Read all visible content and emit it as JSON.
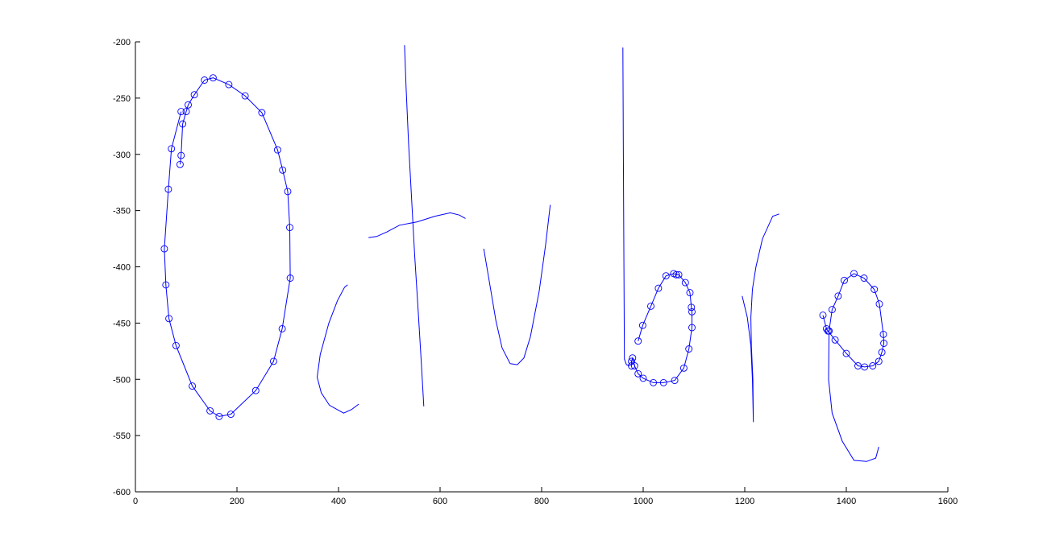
{
  "chart_data": {
    "type": "line",
    "title": "",
    "xlabel": "",
    "ylabel": "",
    "xlim": [
      0,
      1600
    ],
    "ylim": [
      -600,
      -200
    ],
    "x_ticks": [
      0,
      200,
      400,
      600,
      800,
      1000,
      1200,
      1400,
      1600
    ],
    "y_ticks": [
      -200,
      -250,
      -300,
      -350,
      -400,
      -450,
      -500,
      -550,
      -600
    ],
    "x_tick_labels": [
      "0",
      "200",
      "400",
      "600",
      "800",
      "1000",
      "1200",
      "1400",
      "1600"
    ],
    "y_tick_labels": [
      "-200",
      "-250",
      "-300",
      "-350",
      "-400",
      "-450",
      "-500",
      "-550",
      "-600"
    ],
    "grid": false,
    "line_color": "#0000ff",
    "axes_color": "#000000",
    "series": [
      {
        "markers": true,
        "points": [
          [
            88,
            -309
          ],
          [
            90,
            -301
          ],
          [
            93,
            -273
          ],
          [
            100,
            -262
          ],
          [
            104,
            -256
          ],
          [
            116,
            -247
          ],
          [
            136,
            -234
          ],
          [
            153,
            -232
          ],
          [
            184,
            -238
          ],
          [
            216,
            -248
          ],
          [
            249,
            -263
          ],
          [
            280,
            -296
          ],
          [
            290,
            -314
          ],
          [
            300,
            -333
          ],
          [
            304,
            -365
          ],
          [
            305,
            -410
          ],
          [
            289,
            -455
          ],
          [
            272,
            -484
          ],
          [
            237,
            -510
          ],
          [
            188,
            -531
          ],
          [
            165,
            -533
          ],
          [
            147,
            -528
          ],
          [
            112,
            -506
          ],
          [
            80,
            -470
          ],
          [
            66,
            -446
          ],
          [
            60,
            -416
          ],
          [
            57,
            -384
          ],
          [
            65,
            -331
          ],
          [
            71,
            -295
          ],
          [
            90,
            -262
          ]
        ]
      },
      {
        "markers": false,
        "points": [
          [
            418,
            -416
          ],
          [
            412,
            -418
          ],
          [
            398,
            -430
          ],
          [
            381,
            -450
          ],
          [
            364,
            -478
          ],
          [
            358,
            -498
          ],
          [
            366,
            -512
          ],
          [
            382,
            -523
          ],
          [
            410,
            -530
          ],
          [
            425,
            -527
          ],
          [
            440,
            -522
          ]
        ]
      },
      {
        "markers": false,
        "points": [
          [
            530,
            -203
          ],
          [
            533,
            -240
          ],
          [
            538,
            -290
          ],
          [
            544,
            -340
          ],
          [
            550,
            -390
          ],
          [
            557,
            -440
          ],
          [
            563,
            -485
          ],
          [
            568,
            -524
          ]
        ]
      },
      {
        "markers": false,
        "points": [
          [
            459,
            -374
          ],
          [
            475,
            -373
          ],
          [
            495,
            -369
          ],
          [
            520,
            -363
          ],
          [
            555,
            -360
          ],
          [
            590,
            -355
          ],
          [
            620,
            -352
          ],
          [
            638,
            -354
          ],
          [
            650,
            -357
          ]
        ]
      },
      {
        "markers": false,
        "points": [
          [
            686,
            -384
          ],
          [
            695,
            -408
          ],
          [
            710,
            -448
          ],
          [
            722,
            -472
          ],
          [
            738,
            -486
          ],
          [
            752,
            -487
          ],
          [
            765,
            -481
          ],
          [
            778,
            -462
          ],
          [
            795,
            -422
          ],
          [
            808,
            -380
          ],
          [
            817,
            -345
          ]
        ]
      },
      {
        "markers": false,
        "points": [
          [
            960,
            -205
          ],
          [
            961,
            -300
          ],
          [
            962,
            -400
          ],
          [
            963,
            -482
          ],
          [
            967,
            -487
          ],
          [
            975,
            -488
          ]
        ]
      },
      {
        "markers": true,
        "points": [
          [
            977,
            -488
          ],
          [
            977,
            -484
          ],
          [
            979,
            -481
          ],
          [
            983,
            -488
          ],
          [
            990,
            -495
          ],
          [
            1000,
            -499
          ],
          [
            1020,
            -503
          ],
          [
            1040,
            -503
          ],
          [
            1062,
            -501
          ],
          [
            1080,
            -490
          ],
          [
            1090,
            -473
          ],
          [
            1096,
            -454
          ],
          [
            1096,
            -440
          ],
          [
            1095,
            -436
          ],
          [
            1092,
            -423
          ],
          [
            1083,
            -414
          ],
          [
            1070,
            -407
          ],
          [
            1065,
            -407
          ],
          [
            1060,
            -406
          ],
          [
            1045,
            -408
          ],
          [
            1030,
            -419
          ],
          [
            1015,
            -435
          ],
          [
            999,
            -452
          ],
          [
            990,
            -466
          ]
        ]
      },
      {
        "markers": false,
        "points": [
          [
            1195,
            -426
          ],
          [
            1205,
            -445
          ],
          [
            1212,
            -470
          ],
          [
            1215,
            -500
          ],
          [
            1217,
            -538
          ],
          [
            1216,
            -500
          ],
          [
            1213,
            -470
          ],
          [
            1212,
            -445
          ],
          [
            1215,
            -420
          ],
          [
            1222,
            -400
          ],
          [
            1235,
            -375
          ],
          [
            1255,
            -355
          ],
          [
            1268,
            -353
          ]
        ]
      },
      {
        "markers": true,
        "points": [
          [
            1354,
            -443
          ],
          [
            1361,
            -455
          ],
          [
            1364,
            -457
          ],
          [
            1378,
            -465
          ],
          [
            1400,
            -477
          ],
          [
            1423,
            -488
          ],
          [
            1436,
            -489
          ],
          [
            1452,
            -488
          ],
          [
            1464,
            -484
          ],
          [
            1470,
            -476
          ],
          [
            1474,
            -468
          ],
          [
            1473,
            -460
          ],
          [
            1465,
            -433
          ],
          [
            1455,
            -420
          ],
          [
            1435,
            -410
          ],
          [
            1415,
            -406
          ],
          [
            1396,
            -412
          ],
          [
            1384,
            -426
          ],
          [
            1372,
            -438
          ],
          [
            1366,
            -457
          ]
        ]
      },
      {
        "markers": false,
        "points": [
          [
            1366,
            -457
          ],
          [
            1365,
            -500
          ],
          [
            1372,
            -530
          ],
          [
            1392,
            -555
          ],
          [
            1415,
            -572
          ],
          [
            1440,
            -573
          ],
          [
            1458,
            -570
          ],
          [
            1464,
            -560
          ]
        ]
      }
    ]
  }
}
